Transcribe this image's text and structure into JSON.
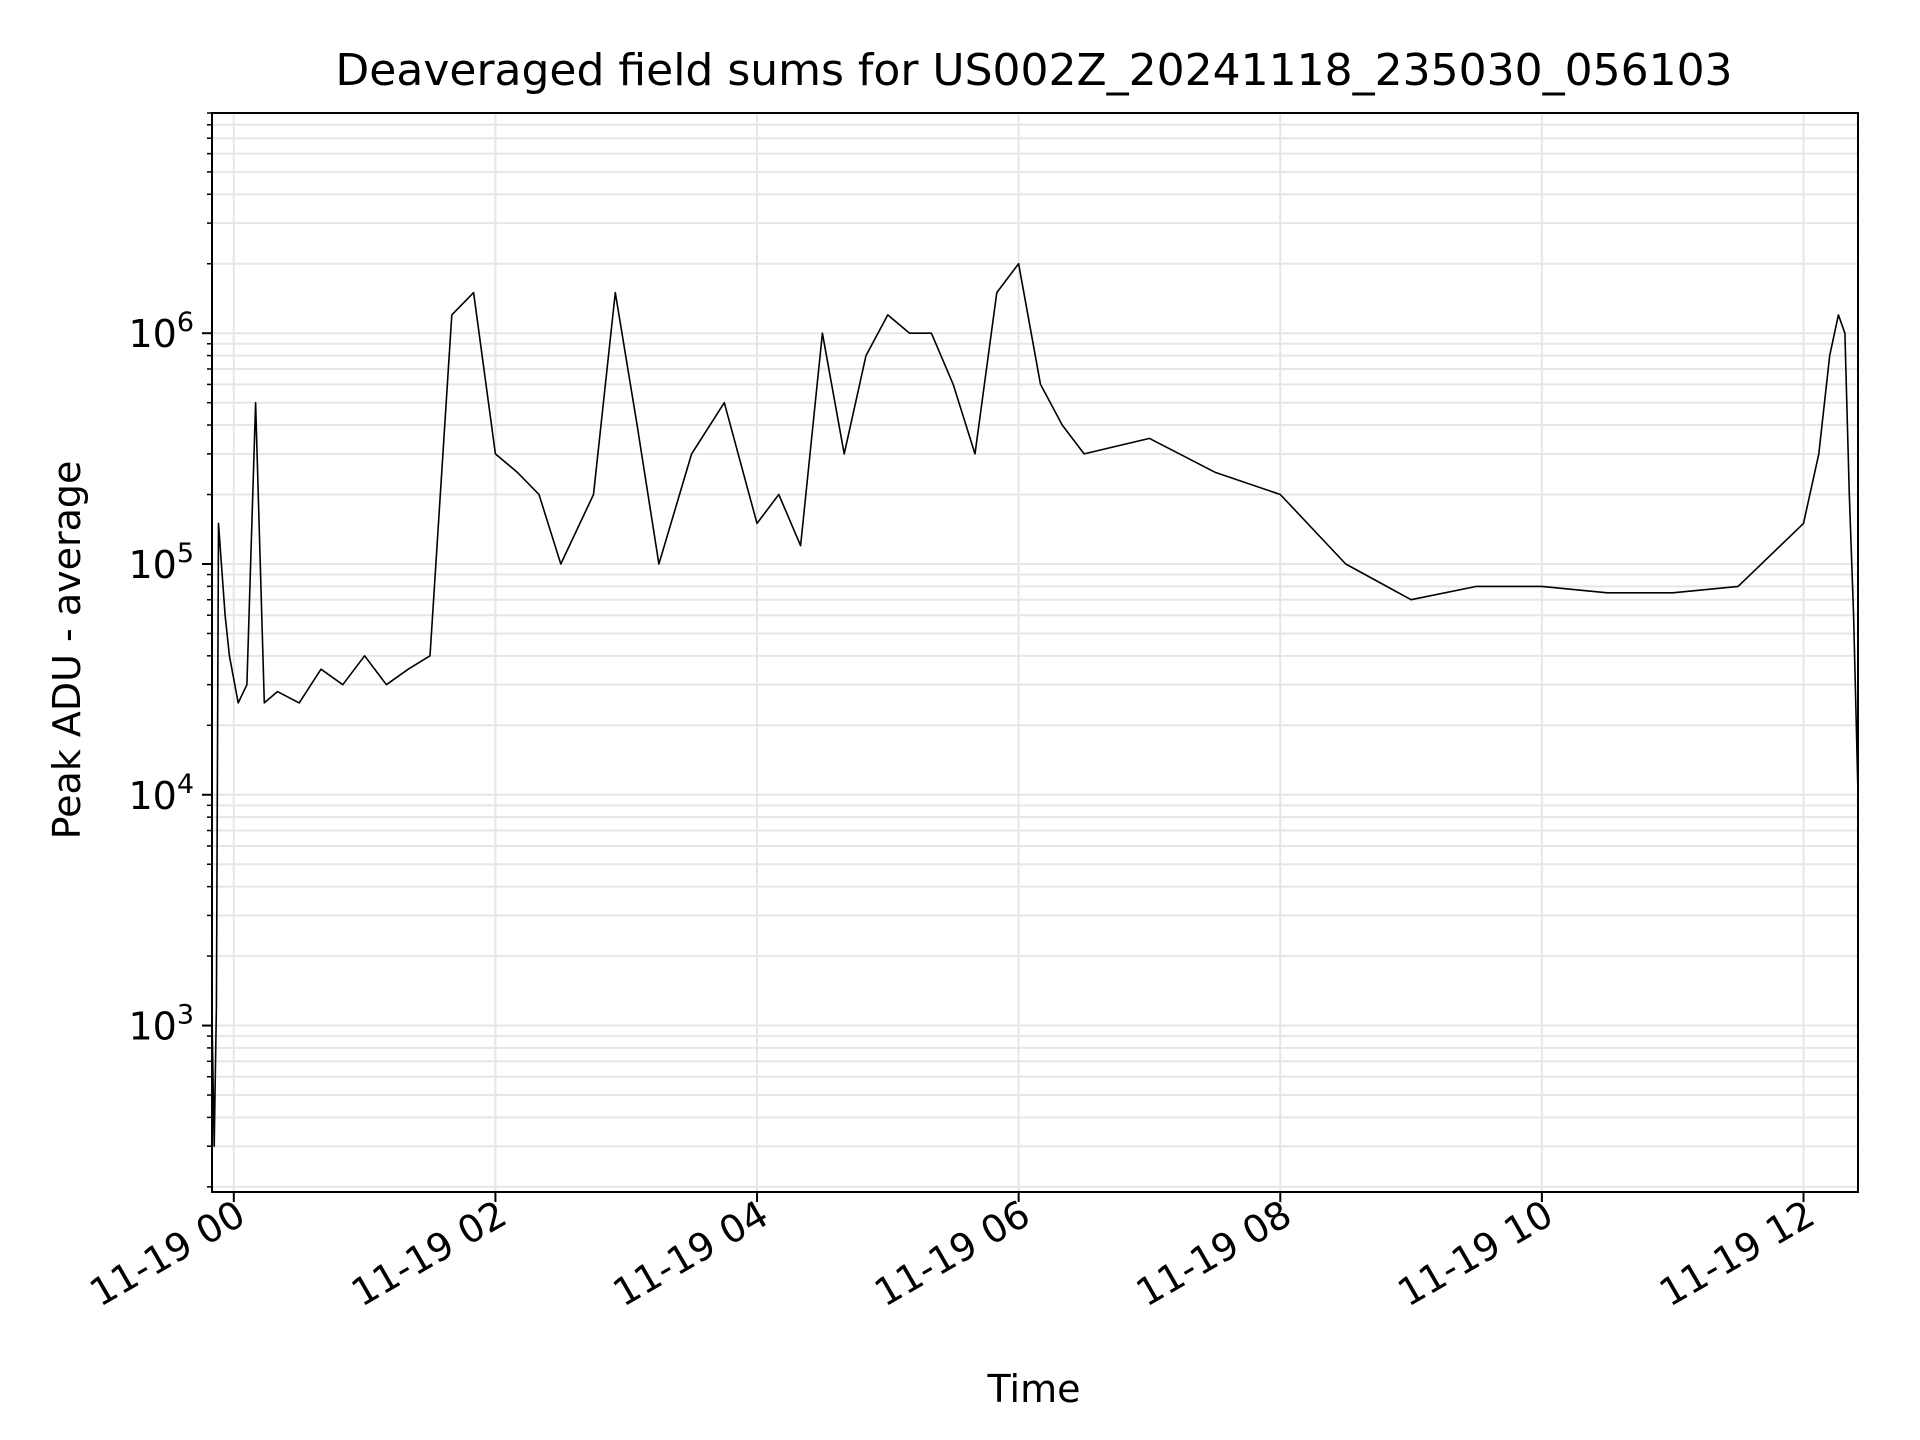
{
  "chart_data": {
    "type": "line",
    "title": "Deaveraged field sums for US002Z_20241118_235030_056103",
    "xlabel": "Time",
    "ylabel": "Peak ADU - average",
    "yscale": "log",
    "xlim": [
      "2024-11-18 23:50",
      "2024-11-19 12:25"
    ],
    "ylim": [
      190,
      9000000
    ],
    "grid": "on (major and minor)",
    "xticks": [
      {
        "time": "2024-11-19 00:00",
        "label": "11-19 00"
      },
      {
        "time": "2024-11-19 02:00",
        "label": "11-19 02"
      },
      {
        "time": "2024-11-19 04:00",
        "label": "11-19 04"
      },
      {
        "time": "2024-11-19 06:00",
        "label": "11-19 06"
      },
      {
        "time": "2024-11-19 08:00",
        "label": "11-19 08"
      },
      {
        "time": "2024-11-19 10:00",
        "label": "11-19 10"
      },
      {
        "time": "2024-11-19 12:00",
        "label": "11-19 12"
      }
    ],
    "yticks": [
      {
        "value": 1000,
        "base": "10",
        "exp": "3"
      },
      {
        "value": 10000,
        "base": "10",
        "exp": "4"
      },
      {
        "value": 100000,
        "base": "10",
        "exp": "5"
      },
      {
        "value": 1000000,
        "base": "10",
        "exp": "6"
      }
    ],
    "series": [
      {
        "color": "#000000",
        "points": [
          [
            "2024-11-18 23:50",
            1100
          ],
          [
            "2024-11-18 23:51",
            300
          ],
          [
            "2024-11-18 23:52",
            1200
          ],
          [
            "2024-11-18 23:53",
            150000
          ],
          [
            "2024-11-18 23:56",
            60000
          ],
          [
            "2024-11-18 23:58",
            40000
          ],
          [
            "2024-11-19 00:02",
            25000
          ],
          [
            "2024-11-19 00:06",
            30000
          ],
          [
            "2024-11-19 00:10",
            500000
          ],
          [
            "2024-11-19 00:14",
            25000
          ],
          [
            "2024-11-19 00:20",
            28000
          ],
          [
            "2024-11-19 00:30",
            25000
          ],
          [
            "2024-11-19 00:40",
            35000
          ],
          [
            "2024-11-19 00:50",
            30000
          ],
          [
            "2024-11-19 01:00",
            40000
          ],
          [
            "2024-11-19 01:10",
            30000
          ],
          [
            "2024-11-19 01:20",
            35000
          ],
          [
            "2024-11-19 01:30",
            40000
          ],
          [
            "2024-11-19 01:40",
            1200000
          ],
          [
            "2024-11-19 01:50",
            1500000
          ],
          [
            "2024-11-19 02:00",
            300000
          ],
          [
            "2024-11-19 02:10",
            250000
          ],
          [
            "2024-11-19 02:20",
            200000
          ],
          [
            "2024-11-19 02:30",
            100000
          ],
          [
            "2024-11-19 02:45",
            200000
          ],
          [
            "2024-11-19 02:55",
            1500000
          ],
          [
            "2024-11-19 03:05",
            400000
          ],
          [
            "2024-11-19 03:15",
            100000
          ],
          [
            "2024-11-19 03:30",
            300000
          ],
          [
            "2024-11-19 03:45",
            500000
          ],
          [
            "2024-11-19 04:00",
            150000
          ],
          [
            "2024-11-19 04:10",
            200000
          ],
          [
            "2024-11-19 04:20",
            120000
          ],
          [
            "2024-11-19 04:30",
            1000000
          ],
          [
            "2024-11-19 04:40",
            300000
          ],
          [
            "2024-11-19 04:50",
            800000
          ],
          [
            "2024-11-19 05:00",
            1200000
          ],
          [
            "2024-11-19 05:10",
            1000000
          ],
          [
            "2024-11-19 05:20",
            1000000
          ],
          [
            "2024-11-19 05:30",
            600000
          ],
          [
            "2024-11-19 05:40",
            300000
          ],
          [
            "2024-11-19 05:50",
            1500000
          ],
          [
            "2024-11-19 06:00",
            2000000
          ],
          [
            "2024-11-19 06:10",
            600000
          ],
          [
            "2024-11-19 06:20",
            400000
          ],
          [
            "2024-11-19 06:30",
            300000
          ],
          [
            "2024-11-19 07:00",
            350000
          ],
          [
            "2024-11-19 07:30",
            250000
          ],
          [
            "2024-11-19 08:00",
            200000
          ],
          [
            "2024-11-19 08:30",
            100000
          ],
          [
            "2024-11-19 09:00",
            70000
          ],
          [
            "2024-11-19 09:30",
            80000
          ],
          [
            "2024-11-19 10:00",
            80000
          ],
          [
            "2024-11-19 10:30",
            75000
          ],
          [
            "2024-11-19 11:00",
            75000
          ],
          [
            "2024-11-19 11:30",
            80000
          ],
          [
            "2024-11-19 12:00",
            150000
          ],
          [
            "2024-11-19 12:07",
            300000
          ],
          [
            "2024-11-19 12:12",
            800000
          ],
          [
            "2024-11-19 12:16",
            1200000
          ],
          [
            "2024-11-19 12:19",
            1000000
          ],
          [
            "2024-11-19 12:21",
            200000
          ],
          [
            "2024-11-19 12:23",
            60000
          ],
          [
            "2024-11-19 12:25",
            10000
          ]
        ]
      }
    ]
  }
}
